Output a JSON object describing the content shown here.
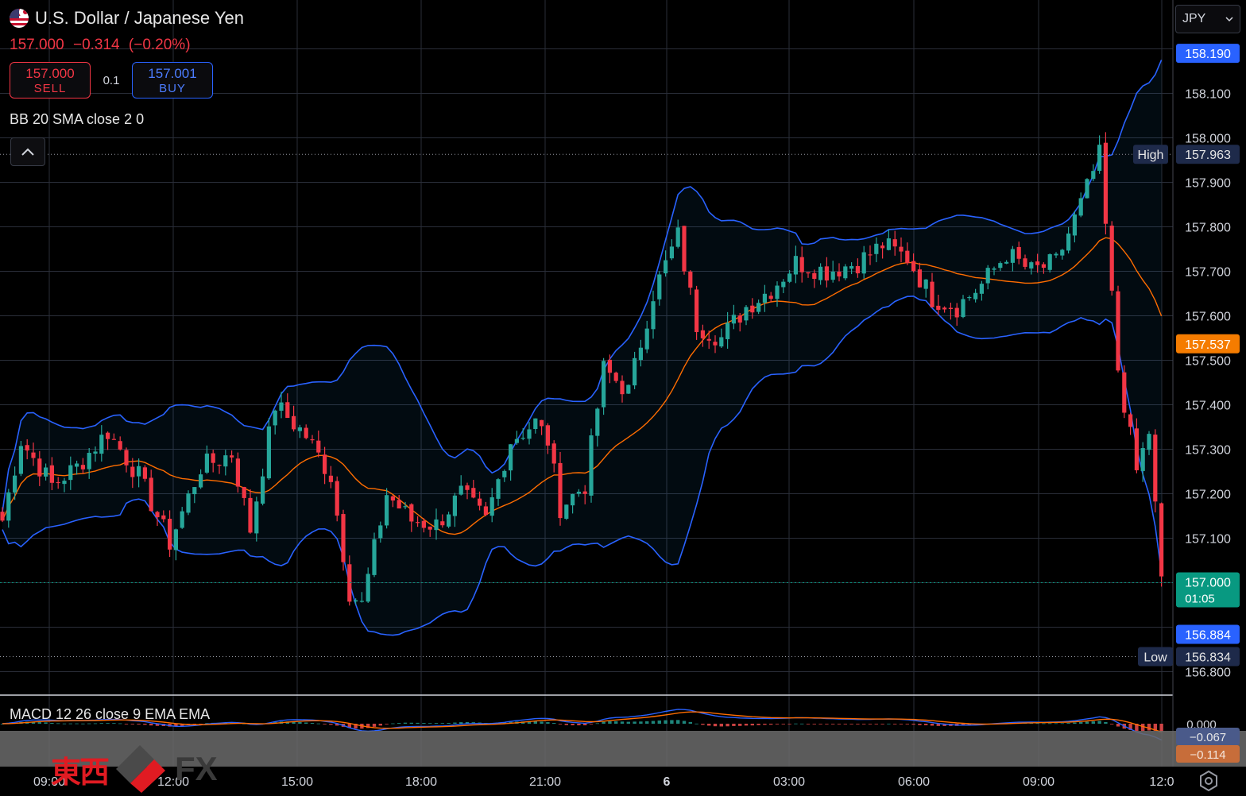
{
  "header": {
    "title": "U.S. Dollar / Japanese Yen",
    "last_price": "157.000",
    "change": "−0.314",
    "change_pct": "(−0.20%)",
    "sell_price": "157.000",
    "sell_label": "SELL",
    "buy_price": "157.001",
    "buy_label": "BUY",
    "spread": "0.1"
  },
  "indicators": {
    "bb_label": "BB 20 SMA close 2 0",
    "macd_label": "MACD 12 26 close 9 EMA EMA"
  },
  "currency_select": {
    "value": "JPY"
  },
  "watermark": {
    "kanji": "東西",
    "fx": "FX"
  },
  "colors": {
    "up": "#26a69a",
    "down": "#f23645",
    "bb_band": "#2962ff",
    "basis": "#ff6d00",
    "price_tag": "#089981",
    "low_high_tag": "#1e2a4a"
  },
  "chart_data": {
    "type": "candlestick",
    "symbol": "USDJPY",
    "x_tick_labels": [
      "09:00",
      "12:00",
      "15:00",
      "18:00",
      "21:00",
      "6",
      "03:00",
      "06:00",
      "09:00",
      "12:0"
    ],
    "y_tick_labels": [
      "158.100",
      "158.000",
      "157.900",
      "157.800",
      "157.700",
      "157.600",
      "157.500",
      "157.400",
      "157.300",
      "157.200",
      "157.100",
      "156.800"
    ],
    "ylim": [
      156.78,
      158.29
    ],
    "markers": {
      "bb_upper": "158.190",
      "high_label": "High",
      "high": "157.963",
      "basis": "157.537",
      "current": "157.000",
      "countdown": "01:05",
      "bb_lower": "156.884",
      "low_label": "Low",
      "low": "156.834"
    },
    "close_keypoints": [
      [
        0,
        157.14
      ],
      [
        3,
        157.32
      ],
      [
        8,
        157.22
      ],
      [
        12,
        157.26
      ],
      [
        17,
        157.34
      ],
      [
        22,
        157.24
      ],
      [
        27,
        157.09
      ],
      [
        32,
        157.26
      ],
      [
        37,
        157.29
      ],
      [
        40,
        157.12
      ],
      [
        44,
        157.4
      ],
      [
        49,
        157.33
      ],
      [
        53,
        157.24
      ],
      [
        56,
        156.98
      ],
      [
        58,
        156.95
      ],
      [
        62,
        157.2
      ],
      [
        66,
        157.14
      ],
      [
        70,
        157.13
      ],
      [
        74,
        157.2
      ],
      [
        78,
        157.14
      ],
      [
        82,
        157.32
      ],
      [
        86,
        157.36
      ],
      [
        88,
        157.32
      ],
      [
        90,
        157.17
      ],
      [
        94,
        157.22
      ],
      [
        97,
        157.48
      ],
      [
        101,
        157.43
      ],
      [
        105,
        157.65
      ],
      [
        109,
        157.78
      ],
      [
        112,
        157.58
      ],
      [
        116,
        157.55
      ],
      [
        120,
        157.62
      ],
      [
        124,
        157.66
      ],
      [
        128,
        157.72
      ],
      [
        133,
        157.7
      ],
      [
        138,
        157.72
      ],
      [
        142,
        157.76
      ],
      [
        146,
        157.73
      ],
      [
        150,
        157.64
      ],
      [
        154,
        157.62
      ],
      [
        158,
        157.67
      ],
      [
        162,
        157.74
      ],
      [
        166,
        157.7
      ],
      [
        170,
        157.72
      ],
      [
        174,
        157.85
      ],
      [
        177,
        157.96
      ],
      [
        180,
        157.48
      ],
      [
        183,
        157.25
      ],
      [
        185,
        157.34
      ],
      [
        187,
        157.0
      ]
    ],
    "macd": {
      "zero": "0.000",
      "macd_value": "−0.067",
      "signal_value": "−0.114"
    }
  }
}
